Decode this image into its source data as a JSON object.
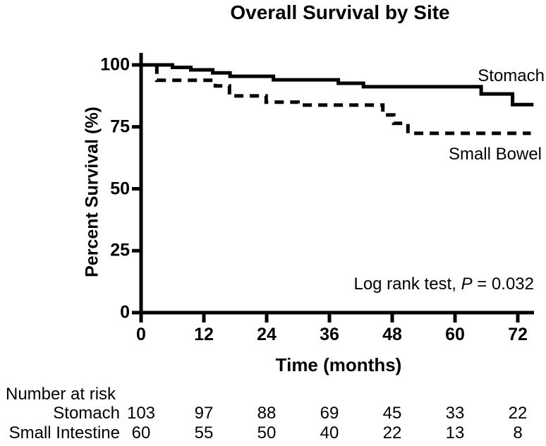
{
  "title": "Overall Survival by Site",
  "colors": {
    "foreground": "#000000",
    "background": "#ffffff"
  },
  "chart_data": {
    "type": "line",
    "subtype": "kaplan-meier-step",
    "title": "Overall Survival by Site",
    "xlabel": "Time (months)",
    "ylabel": "Percent Survival (%)",
    "xlim": [
      0,
      75
    ],
    "ylim": [
      0,
      105
    ],
    "xticks": [
      0,
      12,
      24,
      36,
      48,
      60,
      72
    ],
    "yticks": [
      0,
      25,
      50,
      75,
      100
    ],
    "grid": false,
    "legend_position": "labels-at-line-ends",
    "annotation": {
      "prefix": "Log rank test, ",
      "p_symbol": "P",
      "rest": " = 0.032"
    },
    "series": [
      {
        "name": "Stomach",
        "line_style": "solid",
        "points": [
          [
            0,
            100
          ],
          [
            6,
            100
          ],
          [
            6,
            99
          ],
          [
            9.5,
            99
          ],
          [
            9.5,
            98
          ],
          [
            13.7,
            98
          ],
          [
            13.7,
            96.8
          ],
          [
            17,
            96.8
          ],
          [
            17,
            95.4
          ],
          [
            25.3,
            95.4
          ],
          [
            25.3,
            94
          ],
          [
            37.7,
            94
          ],
          [
            37.7,
            92.6
          ],
          [
            42.5,
            92.6
          ],
          [
            42.5,
            91.2
          ],
          [
            65,
            91.2
          ],
          [
            65,
            88.3
          ],
          [
            71,
            88.3
          ],
          [
            71,
            84
          ],
          [
            75,
            84
          ]
        ]
      },
      {
        "name": "Small Bowel",
        "line_style": "dashed",
        "points": [
          [
            0,
            100
          ],
          [
            3,
            100
          ],
          [
            3,
            93.8
          ],
          [
            14.2,
            93.8
          ],
          [
            14.2,
            91.5
          ],
          [
            16.9,
            91.5
          ],
          [
            16.9,
            87.5
          ],
          [
            23.9,
            87.5
          ],
          [
            23.9,
            85
          ],
          [
            30,
            85
          ],
          [
            30,
            83.8
          ],
          [
            46.2,
            83.8
          ],
          [
            46.2,
            79.8
          ],
          [
            48.3,
            79.8
          ],
          [
            48.3,
            76.4
          ],
          [
            51,
            76.4
          ],
          [
            51,
            72.4
          ],
          [
            74.5,
            72.4
          ]
        ]
      }
    ],
    "number_at_risk": {
      "heading": "Number at risk",
      "times": [
        0,
        12,
        24,
        36,
        48,
        60,
        72
      ],
      "rows": [
        {
          "label": "Stomach",
          "counts": [
            103,
            97,
            88,
            69,
            45,
            33,
            22
          ]
        },
        {
          "label": "Small Intestine",
          "counts": [
            60,
            55,
            50,
            40,
            22,
            13,
            8
          ]
        }
      ]
    }
  }
}
